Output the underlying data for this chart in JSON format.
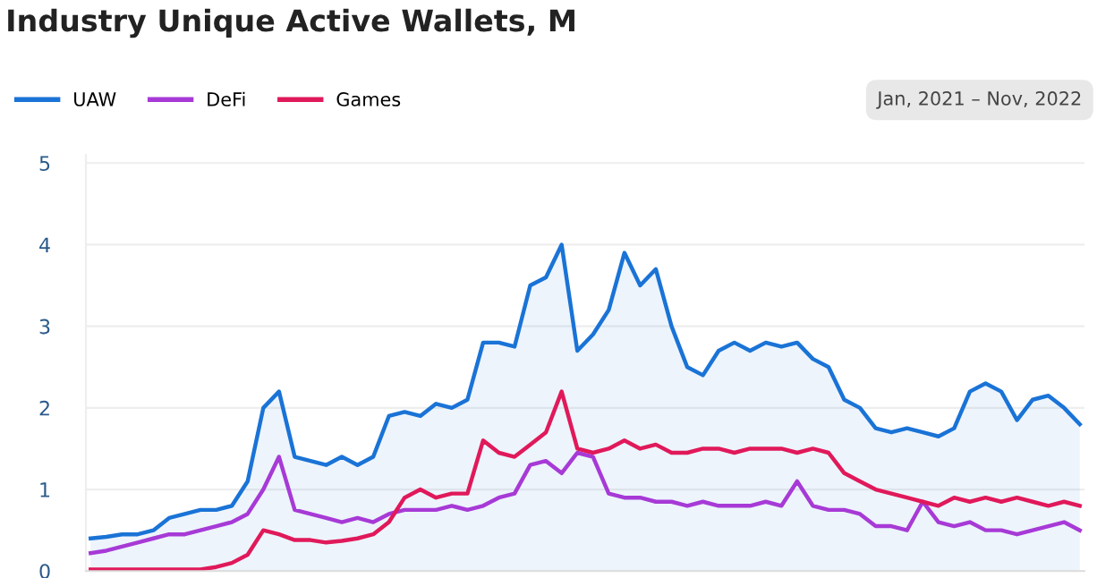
{
  "chart_data": {
    "type": "line",
    "title": "Industry Unique Active Wallets, M",
    "annotations": [
      "Jan, 2021 – Nov, 2022"
    ],
    "categories": [
      null,
      null,
      null,
      null,
      null,
      null,
      null,
      null,
      null,
      null,
      null,
      null,
      null,
      null,
      null,
      null,
      null,
      null,
      null,
      null,
      null,
      null,
      null,
      null,
      null,
      null,
      null,
      null,
      null,
      null,
      null,
      null,
      null,
      null,
      null,
      null,
      null,
      null,
      null,
      null,
      null,
      null,
      null,
      null,
      null,
      null,
      null,
      null,
      null,
      null,
      null,
      null,
      null,
      null,
      null,
      null,
      null,
      null,
      null,
      null,
      null,
      null,
      null,
      null
    ],
    "series": [
      {
        "name": "UAW",
        "type": "area",
        "color": "#1a73d6",
        "values": [
          0.4,
          0.42,
          0.45,
          0.45,
          0.5,
          0.65,
          0.7,
          0.75,
          0.75,
          0.8,
          1.1,
          2.0,
          2.2,
          1.4,
          1.35,
          1.3,
          1.4,
          1.3,
          1.4,
          1.9,
          1.95,
          1.9,
          2.05,
          2.0,
          2.1,
          2.8,
          2.8,
          2.75,
          3.5,
          3.6,
          4.0,
          2.7,
          2.9,
          3.2,
          3.9,
          3.5,
          3.7,
          3.0,
          2.5,
          2.4,
          2.7,
          2.8,
          2.7,
          2.8,
          2.75,
          2.8,
          2.6,
          2.5,
          2.1,
          2.0,
          1.75,
          1.7,
          1.75,
          1.7,
          1.65,
          1.75,
          2.2,
          2.3,
          2.2,
          1.85,
          2.1,
          2.15,
          2.0,
          1.8
        ]
      },
      {
        "name": "DeFi",
        "color": "#a73ad6",
        "values": [
          0.22,
          0.25,
          0.3,
          0.35,
          0.4,
          0.45,
          0.45,
          0.5,
          0.55,
          0.6,
          0.7,
          1.0,
          1.4,
          0.75,
          0.7,
          0.65,
          0.6,
          0.65,
          0.6,
          0.7,
          0.75,
          0.75,
          0.75,
          0.8,
          0.75,
          0.8,
          0.9,
          0.95,
          1.3,
          1.35,
          1.2,
          1.45,
          1.4,
          0.95,
          0.9,
          0.9,
          0.85,
          0.85,
          0.8,
          0.85,
          0.8,
          0.8,
          0.8,
          0.85,
          0.8,
          1.1,
          0.8,
          0.75,
          0.75,
          0.7,
          0.55,
          0.55,
          0.5,
          0.85,
          0.6,
          0.55,
          0.6,
          0.5,
          0.5,
          0.45,
          0.5,
          0.55,
          0.6,
          0.5
        ]
      },
      {
        "name": "Games",
        "color": "#e0195a",
        "values": [
          0.02,
          0.02,
          0.02,
          0.02,
          0.02,
          0.02,
          0.02,
          0.02,
          0.05,
          0.1,
          0.2,
          0.5,
          0.45,
          0.38,
          0.38,
          0.35,
          0.37,
          0.4,
          0.45,
          0.6,
          0.9,
          1.0,
          0.9,
          0.95,
          0.95,
          1.6,
          1.45,
          1.4,
          1.55,
          1.7,
          2.2,
          1.5,
          1.45,
          1.5,
          1.6,
          1.5,
          1.55,
          1.45,
          1.45,
          1.5,
          1.5,
          1.45,
          1.5,
          1.5,
          1.5,
          1.45,
          1.5,
          1.45,
          1.2,
          1.1,
          1.0,
          0.95,
          0.9,
          0.85,
          0.8,
          0.9,
          0.85,
          0.9,
          0.85,
          0.9,
          0.85,
          0.8,
          0.85,
          0.8
        ]
      }
    ],
    "ylim": [
      0,
      5.1
    ],
    "yticks": [
      0,
      1,
      2,
      3,
      4,
      5
    ],
    "grid": "y",
    "legend": "top left",
    "marker": "none",
    "line_style": "solid"
  }
}
